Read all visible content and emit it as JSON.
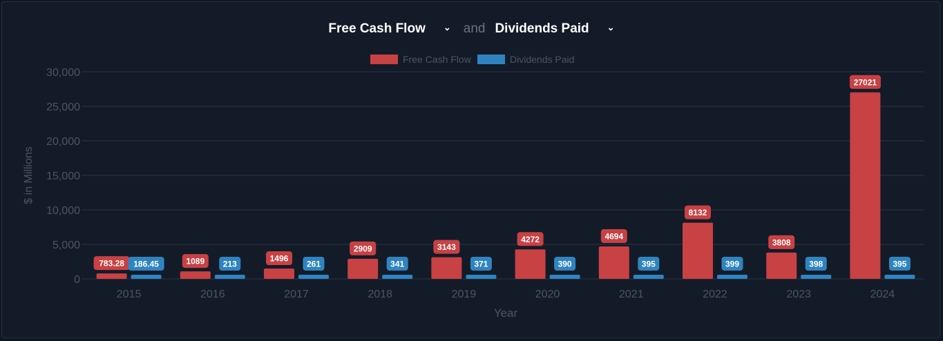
{
  "header": {
    "metric1": {
      "label": "Free Cash Flow",
      "icon": "chevron-down-icon"
    },
    "joiner": "and",
    "metric2": {
      "label": "Dividends Paid",
      "icon": "chevron-down-icon"
    }
  },
  "colors": {
    "fcf": "#c84143",
    "div": "#2f84c0",
    "grid": "#2c3646",
    "axis_text": "#4b5563",
    "background": "#131b29"
  },
  "chart_data": {
    "type": "bar",
    "categories": [
      "2015",
      "2016",
      "2017",
      "2018",
      "2019",
      "2020",
      "2021",
      "2022",
      "2023",
      "2024"
    ],
    "series": [
      {
        "name": "Free Cash Flow",
        "color": "#c84143",
        "values": [
          783.28,
          1089,
          1496,
          2909,
          3143,
          4272,
          4694,
          8132,
          3808,
          27021
        ],
        "labels": [
          "783.28",
          "1089",
          "1496",
          "2909",
          "3143",
          "4272",
          "4694",
          "8132",
          "3808",
          "27021"
        ]
      },
      {
        "name": "Dividends Paid",
        "color": "#2f84c0",
        "values": [
          186.45,
          213,
          261,
          341,
          371,
          390,
          395,
          399,
          398,
          395
        ],
        "labels": [
          "186.45",
          "213",
          "261",
          "341",
          "371",
          "390",
          "395",
          "399",
          "398",
          "395"
        ]
      }
    ],
    "y_ticks": [
      "0",
      "5,000",
      "10,000",
      "15,000",
      "20,000",
      "25,000",
      "30,000"
    ],
    "ylim": [
      0,
      30000
    ],
    "xlabel": "Year",
    "ylabel": "$ in Millions",
    "grid": true,
    "legend_position": "top-center"
  }
}
